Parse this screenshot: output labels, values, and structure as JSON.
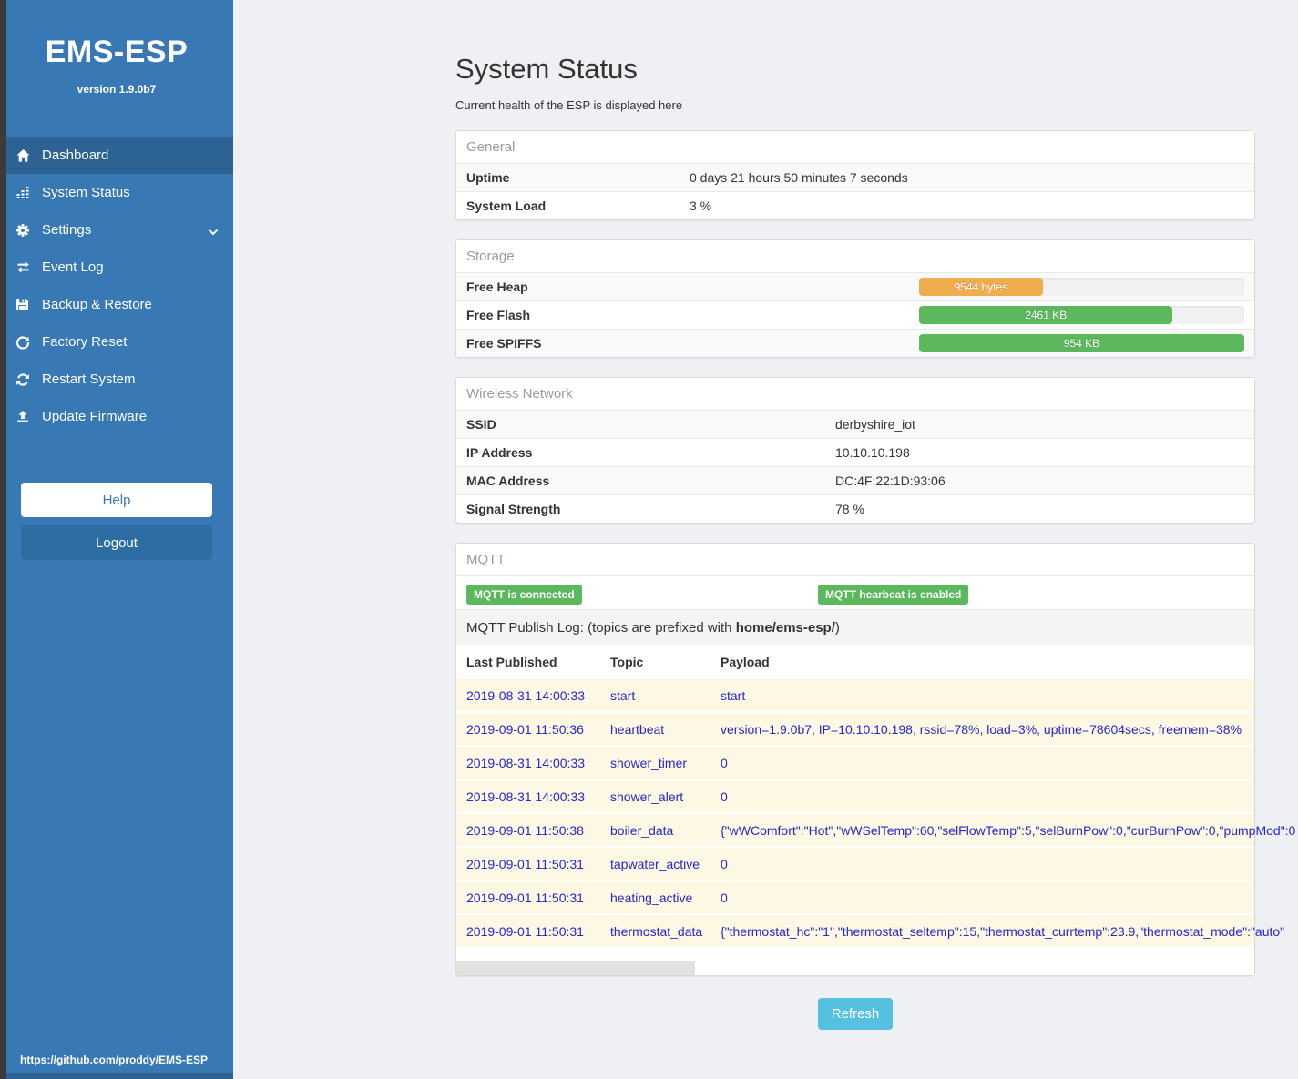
{
  "sidebar": {
    "brand": "EMS-ESP",
    "version": "version 1.9.0b7",
    "menu": [
      {
        "label": "Dashboard",
        "icon": "home-icon",
        "active": true,
        "chevron": false
      },
      {
        "label": "System Status",
        "icon": "bar-chart-icon",
        "active": false,
        "chevron": false
      },
      {
        "label": "Settings",
        "icon": "gear-icon",
        "active": false,
        "chevron": true
      },
      {
        "label": "Event Log",
        "icon": "exchange-icon",
        "active": false,
        "chevron": false
      },
      {
        "label": "Backup & Restore",
        "icon": "save-icon",
        "active": false,
        "chevron": false
      },
      {
        "label": "Factory Reset",
        "icon": "undo-icon",
        "active": false,
        "chevron": false
      },
      {
        "label": "Restart System",
        "icon": "refresh-icon",
        "active": false,
        "chevron": false
      },
      {
        "label": "Update Firmware",
        "icon": "upload-icon",
        "active": false,
        "chevron": false
      }
    ],
    "help_label": "Help",
    "logout_label": "Logout",
    "footer_link": "https://github.com/proddy/EMS-ESP"
  },
  "page": {
    "title": "System Status",
    "subtitle": "Current health of the ESP is displayed here",
    "refresh_label": "Refresh"
  },
  "general": {
    "header": "General",
    "rows": [
      {
        "label": "Uptime",
        "value": "0 days 21 hours 50 minutes 7 seconds"
      },
      {
        "label": "System Load",
        "value": "3 %"
      }
    ]
  },
  "storage": {
    "header": "Storage",
    "rows": [
      {
        "label": "Free Heap",
        "value": "9544 bytes",
        "percent": 38,
        "color": "#f0ad4e"
      },
      {
        "label": "Free Flash",
        "value": "2461 KB",
        "percent": 78,
        "color": "#5cb85c"
      },
      {
        "label": "Free SPIFFS",
        "value": "954 KB",
        "percent": 100,
        "color": "#5cb85c"
      }
    ]
  },
  "wireless": {
    "header": "Wireless Network",
    "rows": [
      {
        "label": "SSID",
        "value": "derbyshire_iot"
      },
      {
        "label": "IP Address",
        "value": "10.10.10.198"
      },
      {
        "label": "MAC Address",
        "value": "DC:4F:22:1D:93:06"
      },
      {
        "label": "Signal Strength",
        "value": "78 %"
      }
    ]
  },
  "mqtt": {
    "header": "MQTT",
    "badges": [
      "MQTT is connected",
      "MQTT hearbeat is enabled"
    ],
    "log_title_prefix": "MQTT Publish Log: (topics are prefixed with ",
    "log_title_bold": "home/ems-esp/",
    "log_title_suffix": ")",
    "columns": [
      "Last Published",
      "Topic",
      "Payload"
    ],
    "rows": [
      {
        "published": "2019-08-31 14:00:33",
        "topic": "start",
        "payload": "start"
      },
      {
        "published": "2019-09-01 11:50:36",
        "topic": "heartbeat",
        "payload": "version=1.9.0b7, IP=10.10.10.198, rssid=78%, load=3%, uptime=78604secs, freemem=38%"
      },
      {
        "published": "2019-08-31 14:00:33",
        "topic": "shower_timer",
        "payload": "0"
      },
      {
        "published": "2019-08-31 14:00:33",
        "topic": "shower_alert",
        "payload": "0"
      },
      {
        "published": "2019-09-01 11:50:38",
        "topic": "boiler_data",
        "payload": "{\"wWComfort\":\"Hot\",\"wWSelTemp\":60,\"selFlowTemp\":5,\"selBurnPow\":0,\"curBurnPow\":0,\"pumpMod\":0"
      },
      {
        "published": "2019-09-01 11:50:31",
        "topic": "tapwater_active",
        "payload": "0"
      },
      {
        "published": "2019-09-01 11:50:31",
        "topic": "heating_active",
        "payload": "0"
      },
      {
        "published": "2019-09-01 11:50:31",
        "topic": "thermostat_data",
        "payload": "{\"thermostat_hc\":\"1\",\"thermostat_seltemp\":15,\"thermostat_currtemp\":23.9,\"thermostat_mode\":\"auto\""
      }
    ]
  },
  "colors": {
    "sidebar": "#3778b5",
    "sidebar_active": "#2c6394",
    "badge_green": "#5cb85c",
    "bar_orange": "#f0ad4e",
    "bar_green": "#5cb85c",
    "refresh_blue": "#56c0e0",
    "log_row_bg": "#fdf8e4",
    "log_text_blue": "#2626cc"
  }
}
